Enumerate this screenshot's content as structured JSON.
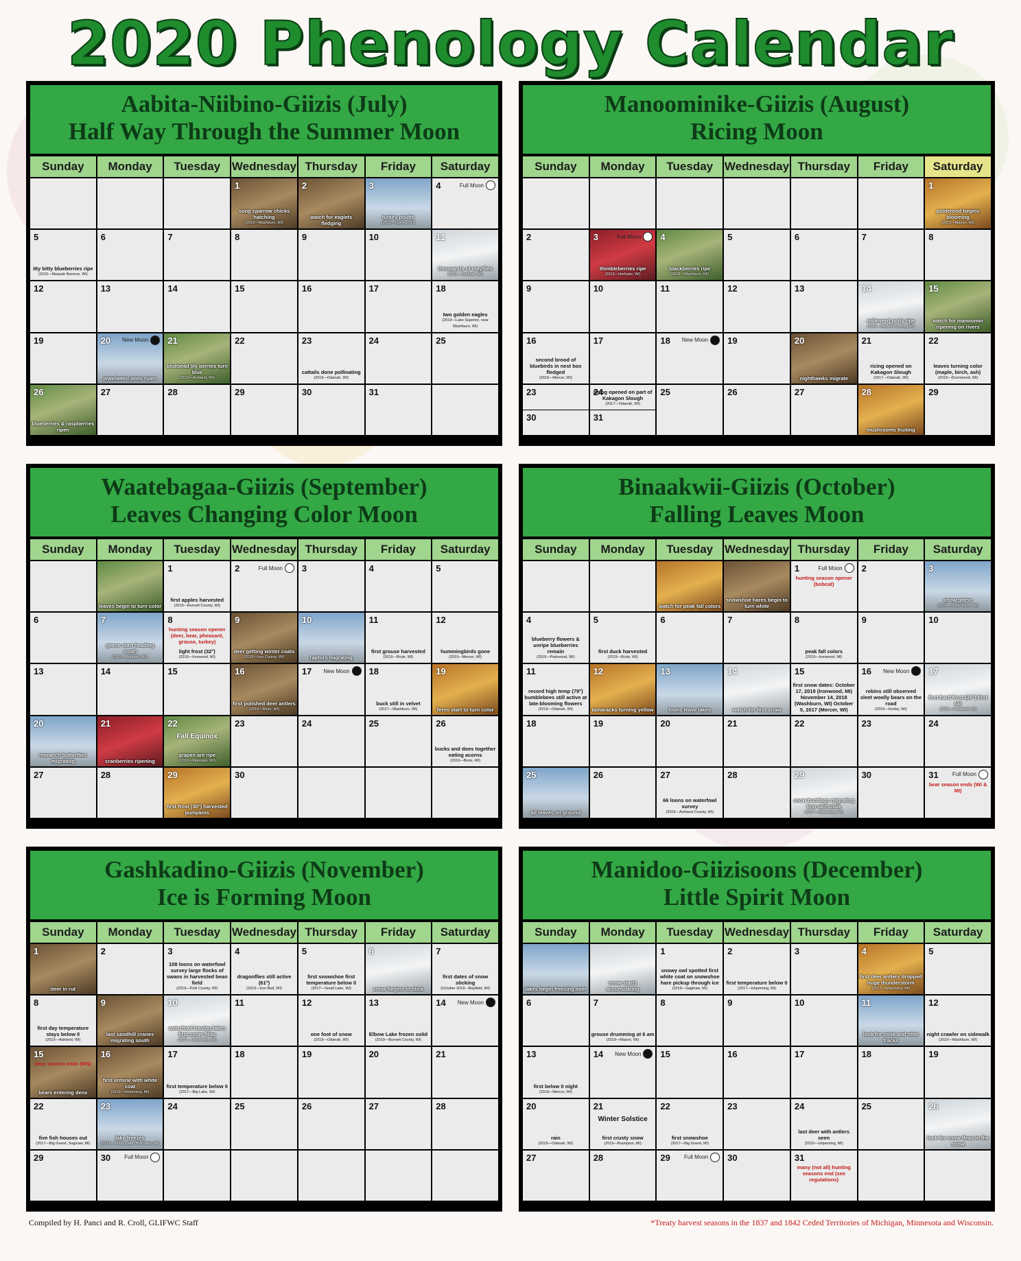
{
  "title": "2020 Phenology Calendar",
  "weekdays": [
    "Sunday",
    "Monday",
    "Tuesday",
    "Wednesday",
    "Thursday",
    "Friday",
    "Saturday"
  ],
  "footer": {
    "credit": "Compiled by H. Panci and R. Croll, GLIFWC Staff",
    "note": "*Treaty harvest seasons in the 1837 and 1842 Ceded Territories of Michigan, Minnesota and Wisconsin."
  },
  "months": [
    {
      "line1": "Aabita-Niibino-Giizis (July)",
      "line2": "Half Way Through the Summer Moon",
      "offset": 3,
      "days": 31,
      "highlight_day": -1,
      "events": {
        "1": {
          "note": "song sparrow chicks hatching",
          "src": "(2019—Washburn, WI)",
          "photo": "brown"
        },
        "2": {
          "note": "watch for eaglets fledging",
          "photo": "brown"
        },
        "3": {
          "note": "turkey poults",
          "src": "(2019—Gurney, WI)",
          "photo": "sky"
        },
        "4": {
          "moon": "Full Moon"
        },
        "5": {
          "note": "itty bitty blueberries ripe",
          "src": "(2019—Mequah Barrens, WI)"
        },
        "11": {
          "note": "thousands of mayflies",
          "src": "(2019—Ashland, WI)",
          "photo": "snow"
        },
        "18": {
          "note": "two golden eagles",
          "src": "(2019—Lake Superior, near Washburn, WI)"
        },
        "20": {
          "moon": "New Moon",
          "note": "jewelweed pods ripen",
          "photo": "sky"
        },
        "21": {
          "note": "bluebead lily berries turn blue",
          "src": "(2019—Ashland, WI)",
          "photo": "ph"
        },
        "23": {
          "note": "cattails done pollinating",
          "src": "(2019—Odanah, WI)"
        },
        "26": {
          "note": "blueberries & raspberries ripen",
          "photo": "ph"
        }
      }
    },
    {
      "line1": "Manoominike-Giizis (August)",
      "line2": "Ricing Moon",
      "offset": 6,
      "days": 31,
      "highlight_day": 6,
      "split": {
        "23": "30",
        "24": "31"
      },
      "events": {
        "1": {
          "note": "goldenrod begins blooming",
          "src": "(2019—Marion, WI)",
          "photo": "warm"
        },
        "3": {
          "moon": "Full Moon",
          "note": "thimbleberries ripe",
          "src": "(2019—Herbster, WI)",
          "photo": "red"
        },
        "4": {
          "note": "blackberries ripe",
          "src": "(2019—Washburn, WI)",
          "photo": "ph"
        },
        "14": {
          "note": "milkweed pods ripe",
          "src": "(2019—Bayfield County, WI)",
          "photo": "snow"
        },
        "15": {
          "note": "watch for manoomin ripening on rivers",
          "photo": "ph"
        },
        "16": {
          "note": "second brood of bluebirds in nest box fledged",
          "src": "(2019—Mercer, WI)"
        },
        "18": {
          "moon": "New Moon"
        },
        "20": {
          "note": "nighthawks migrate",
          "photo": "brown"
        },
        "21": {
          "note": "ricing opened on Kakagon Slough",
          "src": "(2017—Odanah, WI)"
        },
        "22": {
          "note": "leaves turning color (maple, birch, ash)",
          "src": "(2019—Drummond, WI)"
        },
        "24": {
          "note": "ricing opened on part of Kakagon Slough",
          "src": "(2017—Odanah, WI)"
        },
        "28": {
          "note": "mushrooms fruiting",
          "photo": "warm"
        }
      }
    },
    {
      "line1": "Waatebagaa-Giizis (September)",
      "line2": "Leaves Changing Color Moon",
      "offset": 2,
      "days": 30,
      "highlight_day": -1,
      "pre": {
        "note": "leaves begin to turn color",
        "photo": "ph"
      },
      "events": {
        "1": {
          "note": "first apples harvested",
          "src": "(2019—Burnett County, WI)"
        },
        "2": {
          "moon": "Full Moon"
        },
        "7": {
          "note": "geese start heading south",
          "src": "(2019—Ashland, WI)",
          "photo": "sky"
        },
        "8": {
          "top": "hunting season opener (deer, bear, pheasant, grouse, turkey)",
          "note": "light frost (32°)",
          "src": "(2019—Ironwood, MI)"
        },
        "9": {
          "note": "deer getting winter coats",
          "src": "(2019—Iron County, WI)",
          "photo": "brown"
        },
        "10": {
          "note": "raptors migrating",
          "photo": "sky"
        },
        "11": {
          "note": "first grouse harvested",
          "src": "(2019—Brule, WI)"
        },
        "12": {
          "note": "hummingbirds gone",
          "src": "(2019—Mercer, WI)"
        },
        "16": {
          "note": "first polished deer antlers",
          "src": "(2019—Brule, WI)",
          "photo": "brown"
        },
        "17": {
          "moon": "New Moon"
        },
        "18": {
          "note": "buck still in velvet",
          "src": "(2017—Washburn, WI)"
        },
        "19": {
          "note": "ferns start to turn color",
          "photo": "warm"
        },
        "20": {
          "note": "monarch butterflies migrating",
          "photo": "sky"
        },
        "21": {
          "note": "cranberries ripening",
          "photo": "red"
        },
        "22": {
          "big": "Fall Equinox",
          "note": "grapes are ripe",
          "src": "(2019—Marengo, WI)",
          "photo": "ph"
        },
        "26": {
          "note": "bucks and does together eating acorns",
          "src": "(2019—Brule, WI)"
        },
        "29": {
          "note": "first frost (30°) harvested pumpkins",
          "photo": "warm"
        }
      }
    },
    {
      "line1": "Binaakwii-Giizis (October)",
      "line2": "Falling Leaves Moon",
      "offset": 4,
      "days": 31,
      "highlight_day": -1,
      "pre2": [
        {
          "note": "watch for peak fall colors",
          "photo": "warm"
        },
        {
          "note": "snowshoe hares begin to turn white",
          "photo": "brown"
        }
      ],
      "events": {
        "1": {
          "moon": "Full Moon",
          "top": "hunting season opener (bobcat)"
        },
        "3": {
          "note": "snow geese",
          "src": "(2019—White River, WI)",
          "photo": "sky"
        },
        "4": {
          "note": "blueberry flowers & unripe blueberries remain",
          "src": "(2019—Parkwood, WI)"
        },
        "5": {
          "note": "first duck harvested",
          "src": "(2019—Brule, WI)"
        },
        "8": {
          "note": "peak fall colors",
          "src": "(2019—Ironwood, MI)"
        },
        "11": {
          "note": "record high temp (79°) bumblebees still active at late-blooming flowers",
          "src": "(2019—Odanah, WI)"
        },
        "12": {
          "note": "tamaracks turning yellow",
          "photo": "warm"
        },
        "13": {
          "note": "loons leave lakes",
          "photo": "sky"
        },
        "14": {
          "note": "watch for first snow",
          "photo": "snow"
        },
        "15": {
          "note": "first snow dates: October 17, 2019 (Ironwood, MI) November 14, 2018 (Washburn, WI) October 5, 2017 (Mercer, WI)"
        },
        "16": {
          "moon": "New Moon",
          "note": "robins still observed sleet woolly bears on the road",
          "src": "(2019—Hurley, WI)"
        },
        "17": {
          "note": "first hard frost (26°) first ski",
          "src": "(2019—Ironwood, MI)",
          "photo": "snow"
        },
        "25": {
          "note": "all leaves on ground",
          "photo": "sky"
        },
        "27": {
          "note": "66 loons on waterfowl survey",
          "src": "(2019—Ashland County, WI)"
        },
        "29": {
          "note": "snow buntings migrating first skimobile",
          "src": "(2017—Ishpeming, MI)",
          "photo": "snow"
        },
        "31": {
          "moon": "Full Moon",
          "top": "bear season ends (WI & MI)"
        }
      }
    },
    {
      "line1": "Gashkadino-Giizis (November)",
      "line2": "Ice is Forming Moon",
      "offset": 0,
      "days": 30,
      "highlight_day": -1,
      "events": {
        "1": {
          "note": "deer in rut",
          "photo": "brown"
        },
        "3": {
          "note": "108 loons on waterfowl survey large flocks of swans in harvested bean field",
          "src": "(2019—Polk County, WI)"
        },
        "4": {
          "note": "dragonflies still active (61°)",
          "src": "(2019—Iron Belt, WI)"
        },
        "5": {
          "note": "first snowshoe first temperature below 0",
          "src": "(2017—Small Lake, WI)"
        },
        "6": {
          "note": "snow begins to stick",
          "photo": "snow"
        },
        "7": {
          "note": "first dates of snow sticking",
          "src": "(October 2019—Bayfield, WI)"
        },
        "8": {
          "note": "first day temperature stays below 0",
          "src": "(2019—Ashland, WI)"
        },
        "9": {
          "note": "last sandhill cranes migrating south",
          "photo": "brown"
        },
        "10": {
          "note": "waterfowl leaving lakes first snow fleas",
          "src": "(2017—Ishpeming, MI)",
          "photo": "snow"
        },
        "12": {
          "note": "one foot of snow",
          "src": "(2019—Odanah, WI)"
        },
        "13": {
          "note": "Elbow Lake frozen solid",
          "src": "(2019—Burnett County, WI)"
        },
        "14": {
          "moon": "New Moon"
        },
        "15": {
          "top": "bear season ends (MN)",
          "note": "bears entering dens",
          "photo": "brown"
        },
        "16": {
          "note": "first ermine with white coat",
          "src": "(2019—Ishpeming, MI)",
          "photo": "brown"
        },
        "17": {
          "note": "first temperature below 0",
          "src": "(2017—Big Lake, WI)"
        },
        "22": {
          "note": "five fish houses out",
          "src": "(2017—Big Grand, Saginaw, MI)"
        },
        "23": {
          "note": "lake freezes",
          "src": "(2017—Trinity Lake, Brampton, MI)",
          "photo": "sky"
        },
        "30": {
          "moon": "Full Moon"
        }
      }
    },
    {
      "line1": "Manidoo-Giizisoons (December)",
      "line2": "Little Spirit Moon",
      "offset": 2,
      "days": 31,
      "highlight_day": -1,
      "pre2": [
        {
          "note": "lakes begin freezing over",
          "photo": "sky"
        },
        {
          "note": "snow starts accumulating",
          "photo": "snow"
        }
      ],
      "events": {
        "1": {
          "note": "snowy owl spotted first white coat on snowshoe hare pickup through ice",
          "src": "(2019—Saginaw, MI)"
        },
        "2": {
          "note": "first temperature below 0",
          "src": "(2017—Ishpeming, MI)"
        },
        "4": {
          "note": "first deer antlers dropped huge thunderstorm",
          "src": "(2017—Ishpeming, MI)",
          "photo": "warm"
        },
        "7": {
          "note": "grouse drumming at 6 am",
          "src": "(2019—Mason, WI)"
        },
        "11": {
          "note": "look for mink and otter tracks",
          "photo": "sky"
        },
        "12": {
          "note": "night crawler on sidewalk",
          "src": "(2019—Washburn, WI)"
        },
        "13": {
          "note": "first below 0 night",
          "src": "(2019—Mercer, WI)"
        },
        "14": {
          "moon": "New Moon"
        },
        "20": {
          "note": "rain",
          "src": "(2019—Odanah, WI)"
        },
        "21": {
          "big": "Winter Solstice",
          "note": "first crusty snow",
          "src": "(2019—Brampton, MI)"
        },
        "22": {
          "note": "first snowshoe",
          "src": "(2017—Big Grand, MI)"
        },
        "24": {
          "note": "last deer with antlers seen",
          "src": "(2019—Ishpeming, MI)"
        },
        "26": {
          "note": "look for snow fleas in the snow",
          "photo": "snow"
        },
        "29": {
          "moon": "Full Moon"
        },
        "31": {
          "top": "many (not all) hunting seasons end (see regulations)"
        }
      }
    }
  ]
}
